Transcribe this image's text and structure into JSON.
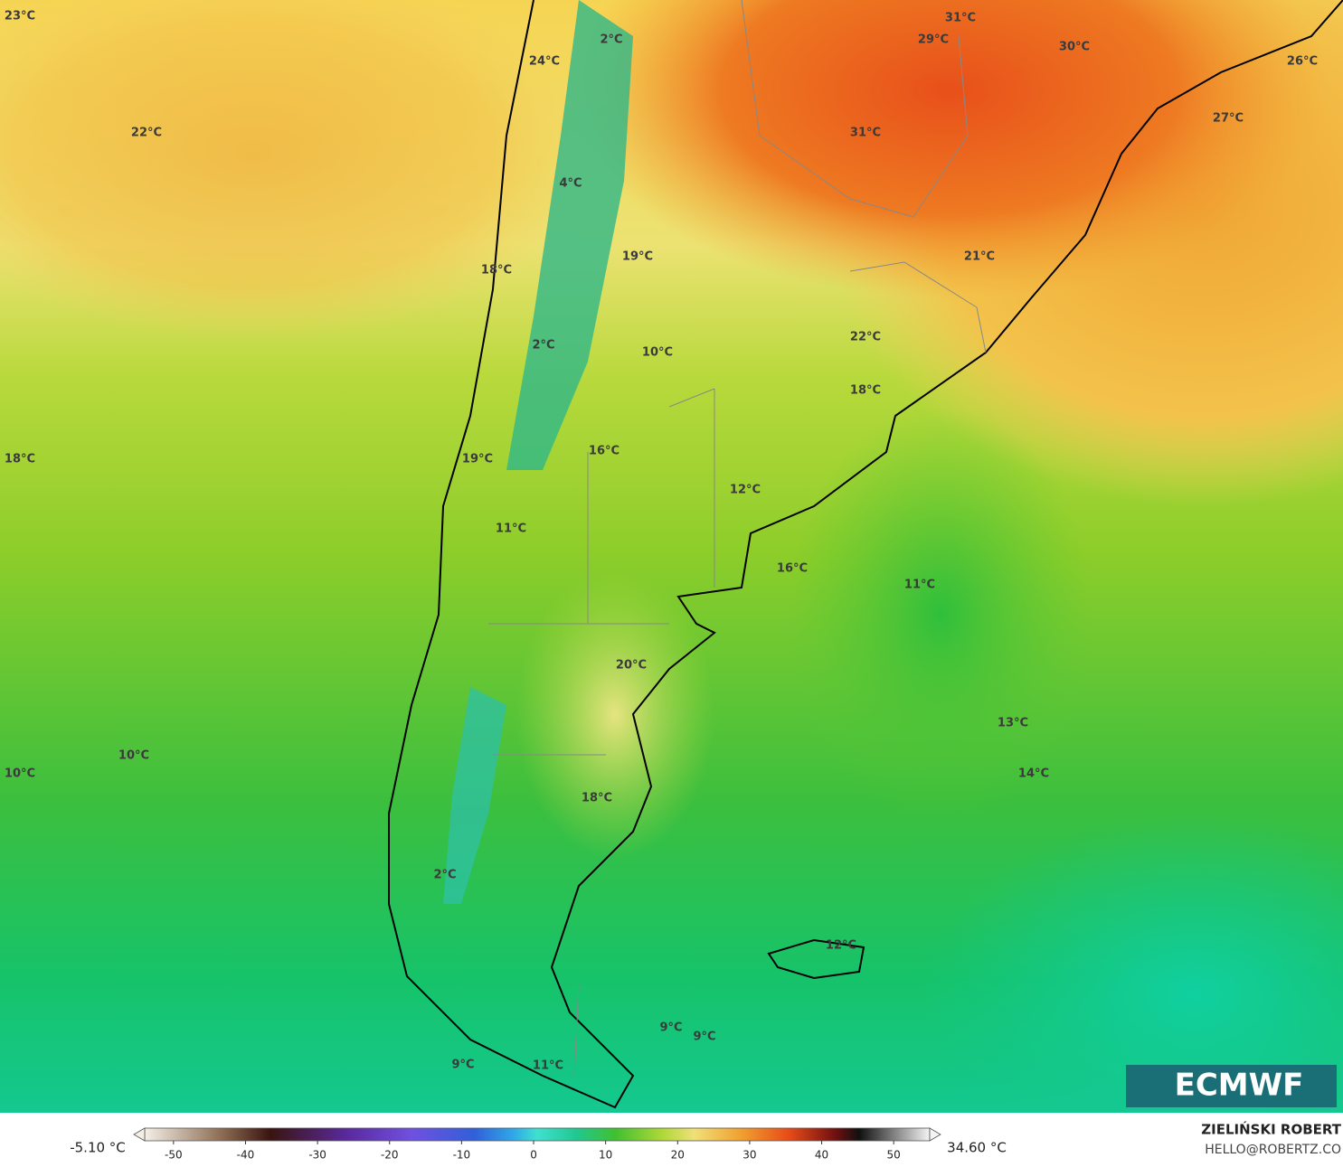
{
  "map": {
    "labels": [
      "23°C",
      "24°C",
      "2°C",
      "31°C",
      "29°C",
      "30°C",
      "26°C",
      "22°C",
      "27°C",
      "31°C",
      "4°C",
      "19°C",
      "21°C",
      "18°C",
      "2°C",
      "22°C",
      "10°C",
      "18°C",
      "18°C",
      "19°C",
      "16°C",
      "12°C",
      "11°C",
      "16°C",
      "11°C",
      "20°C",
      "13°C",
      "10°C",
      "10°C",
      "14°C",
      "18°C",
      "2°C",
      "12°C",
      "9°C",
      "9°C",
      "9°C",
      "11°C"
    ],
    "logo": "ECMWF"
  },
  "colorbar": {
    "min_label": "-5.10 °C",
    "max_label": "34.60 °C",
    "lim": [
      -54,
      55
    ],
    "ticks": [
      -50,
      -40,
      -30,
      -20,
      -10,
      0,
      10,
      20,
      30,
      40,
      50
    ]
  },
  "credit": {
    "author": "ZIELIŃSKI ROBERT",
    "contact": "HELLO@ROBERTZ.CO"
  }
}
